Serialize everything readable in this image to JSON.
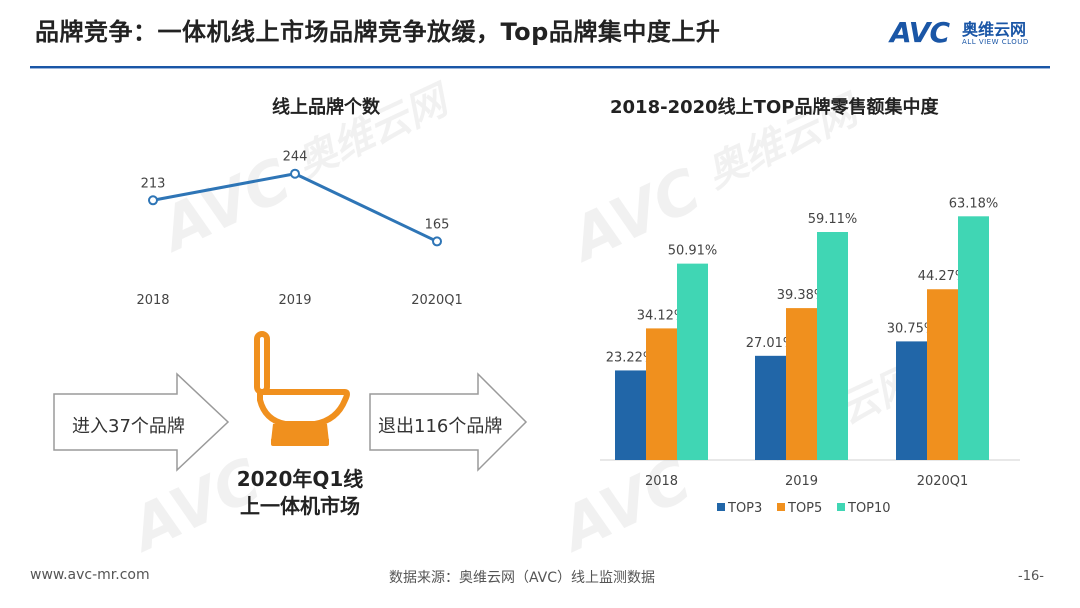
{
  "header": {
    "title": "品牌竞争：一体机线上市场品牌竞争放缓，Top品牌集中度上升"
  },
  "logo": {
    "mark": "AVC",
    "name_cn": "奥维云网",
    "name_en": "ALL VIEW CLOUD"
  },
  "watermark": {
    "mark": "AVC",
    "name_cn": "奥维云网",
    "name_en": "ALL VIEW CLOUD"
  },
  "colors": {
    "accent": "#1a56a6",
    "line": "#2e75b6",
    "top3": "#2166a8",
    "top5": "#f0901e",
    "top10": "#40d6b4",
    "toilet": "#f0901e"
  },
  "left_panel": {
    "toilet_icon": "toilet-icon",
    "caption_line1": "2020年Q1线",
    "caption_line2": "上一体机市场",
    "enter_label": "进入37个品牌",
    "exit_label": "退出116个品牌"
  },
  "chart_data": [
    {
      "type": "line",
      "title": "线上品牌个数",
      "categories": [
        "2018",
        "2019",
        "2020Q1"
      ],
      "values": [
        213,
        244,
        165
      ],
      "ylim": [
        0,
        260
      ]
    },
    {
      "type": "bar",
      "title": "2018-2020线上TOP品牌零售额集中度",
      "categories": [
        "2018",
        "2019",
        "2020Q1"
      ],
      "series": [
        {
          "name": "TOP3",
          "values": [
            23.22,
            27.01,
            30.75
          ],
          "labels": [
            "23.22%",
            "27.01%",
            "30.75%"
          ]
        },
        {
          "name": "TOP5",
          "values": [
            34.12,
            39.38,
            44.27
          ],
          "labels": [
            "34.12%",
            "39.38%",
            "44.27%"
          ]
        },
        {
          "name": "TOP10",
          "values": [
            50.91,
            59.11,
            63.18
          ],
          "labels": [
            "50.91%",
            "59.11%",
            "63.18%"
          ]
        }
      ],
      "ylim": [
        0,
        70
      ],
      "legend": "bottom"
    }
  ],
  "footer": {
    "website": "www.avc-mr.com",
    "source": "数据来源：奥维云网（AVC）线上监测数据",
    "page": "-16-"
  }
}
